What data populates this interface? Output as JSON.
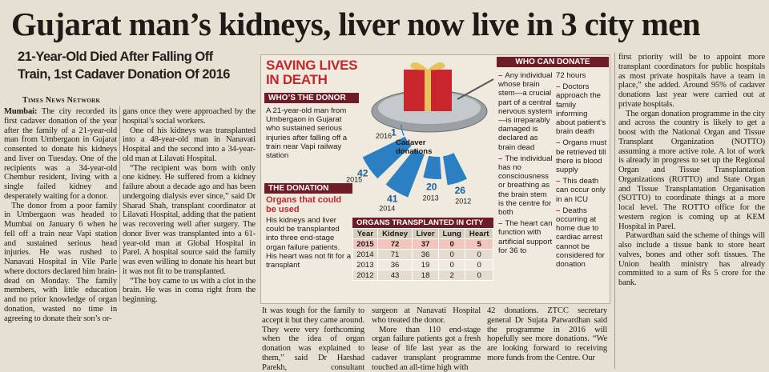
{
  "headline": "Gujarat man’s kidneys, liver now live in 3 city men",
  "subheadline": [
    "21-Year-Old Died After Falling Off",
    "Train, 1st Cadaver Donation Of 2016"
  ],
  "byline": "Times News Network",
  "article": {
    "dateline": "Mumbai:",
    "columns": [
      [
        "The city recorded its first cadaver donation of the year after the family of a 21-year-old man from Umbergaon in Gujarat consented to donate his kidneys and liver on Tuesday. One of the recipients was a 34-year-old Chembur resident, living with a single failed kidney and desperately waiting for a donor.",
        "The donor from a poor family in Umbergaon was headed to Mumbai on January 6 when he fell off a train near Vapi station and sustained serious head injuries. He was rushed to Nanavati Hospital in Vile Parle where doctors declared him brain-dead on Monday. The family members, with little education and no prior knowledge of organ donation, wasted no time in agreeing to donate their son’s or-"
      ],
      [
        "gans once they were approached by the hospital’s social workers.",
        "One of his kidneys was transplanted into a 48-year-old man in Nanavati Hospital and the second into a 34-year-old man at Lilavati Hospital.",
        "“The recipient was born with only one kidney. He suffered from a kidney failure about a decade ago and has been undergoing dialysis ever since,” said Dr Sharad Shah, transplant coordinator at Lilavati Hospital, adding that the patient was recovering well after surgery. The donor liver was transplanted into a 61-year-old man at Global Hospital in Parel. A hospital source said the family was even willing to donate his heart but it was not fit to be transplanted.",
        "“The boy came to us with a clot in the brain. He was in coma right from the beginning."
      ],
      [
        "It was tough for the family to accept it but they came around. They were very forthcoming when the idea of organ donation was explained to them,” said Dr Harshad Parekh, consultant neurological"
      ],
      [
        "surgeon at Nanavati Hospital who treated the donor.",
        "More than 110 end-stage organ failure patients got a fresh lease of life last year as the cadaver transplant programme touched an all-time high with"
      ],
      [
        "42 donations. ZTCC secretary general Dr Sujata Patwardhan said the programme in 2016 will hopefully see more donations. “We are looking forward to receiving more funds from the Centre. Our"
      ],
      [
        "first priority will be to appoint more transplant coordinators for public hospitals as most private hospitals have a team in place,” she added. Around 95% of cadaver donations last year were carried out at private hospitals.",
        "The organ donation programme in the city and across the country is likely to get a boost with the National Organ and Tissue Transplant Organization (NOTTO) assuming a more active role. A lot of work is already in progress to set up the Regional Organ and Tissue Transplantation Organizations (ROTTO) and State Organ and Tissue Transplantation Organisation (SOTTO) to coordinate things at a more local level. The ROTTO office for the western region is coming up at KEM Hospital in Parel.",
        "Patwardhan said the scheme of things will also include a tissue bank to store heart valves, bones and other soft tissues. The Union health ministry has already committed to a sum of Rs 5 crore for the bank."
      ]
    ]
  },
  "infographic": {
    "title": "SAVING LIVES IN DEATH",
    "donor": {
      "heading": "WHO’S THE DONOR",
      "text": "A 21-year-old man from Umbergaon in Gujarat who sustained serious injuries after falling off a train near Vapi railway station"
    },
    "donation": {
      "heading": "THE DONATION",
      "subheading": "Organs that could be used",
      "text": "His kidneys and liver could be transplanted into three end-stage organ failure patients. His heart was not fit for a transplant"
    },
    "cadaver_donations": {
      "label": "Cadaver donations",
      "years": [
        "2016",
        "2015",
        "2014",
        "2013",
        "2012"
      ],
      "values": [
        1,
        42,
        41,
        20,
        26
      ]
    },
    "table": {
      "title": "ORGANS TRANSPLANTED IN CITY",
      "columns": [
        "Year",
        "Kidney",
        "Liver",
        "Lung",
        "Heart"
      ],
      "rows": [
        [
          "2015",
          "72",
          "37",
          "0",
          "5"
        ],
        [
          "2014",
          "71",
          "36",
          "0",
          "0"
        ],
        [
          "2013",
          "36",
          "19",
          "0",
          "0"
        ],
        [
          "2012",
          "43",
          "18",
          "2",
          "0"
        ]
      ]
    },
    "who_can_donate": {
      "heading": "WHO CAN DONATE",
      "columns": [
        [
          "Any individual whose brain stem—a crucial part of a central nervous system—is irreparably damaged is declared as brain dead",
          "The individual has no consciousness or breathing as the brain stem is the centre for both",
          "The heart can function with artificial support for 36 to"
        ],
        [
          "72 hours",
          "Doctors approach the family informing about patient’s brain death",
          "Organs must be retrieved till there is blood supply",
          "This death can occur only in an ICU",
          "Deaths occurring at home due to cardiac arrest cannot be considered for donation"
        ]
      ]
    }
  }
}
